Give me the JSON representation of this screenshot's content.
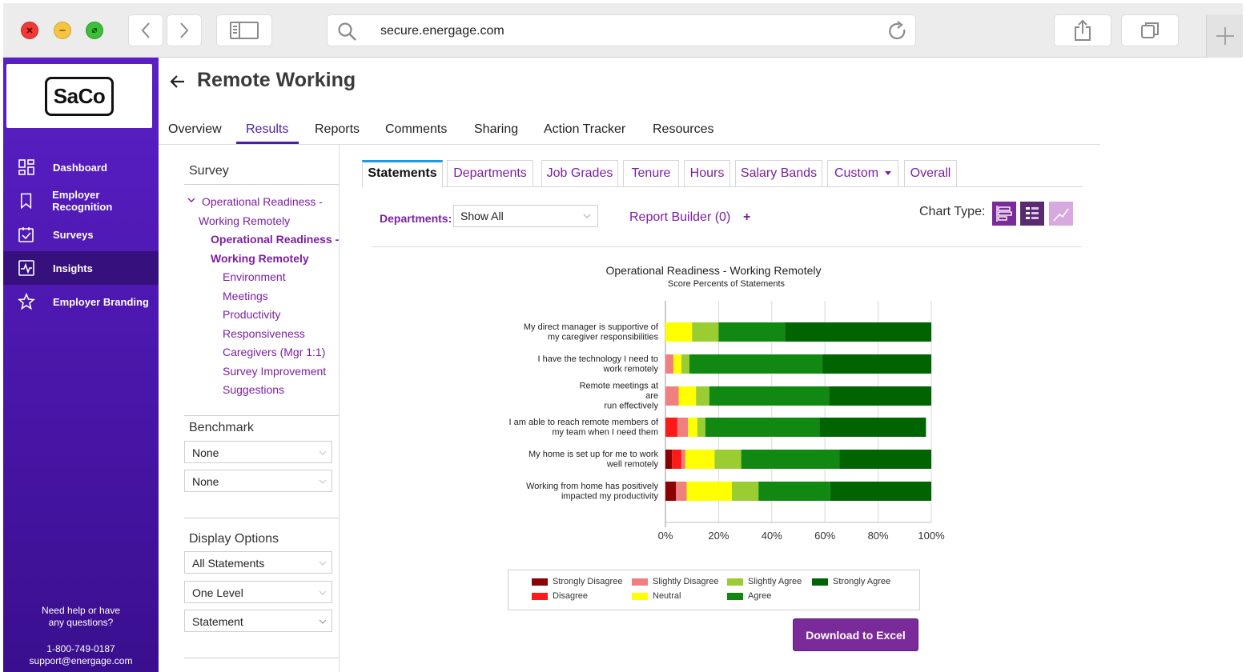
{
  "browser": {
    "url": "secure.energage.com"
  },
  "sidebar": {
    "logo_text": "SaCo",
    "items": [
      {
        "label": "Dashboard",
        "icon": "dashboard-icon"
      },
      {
        "label": "Employer Recognition",
        "icon": "bookmark-icon"
      },
      {
        "label": "Surveys",
        "icon": "checkbox-icon"
      },
      {
        "label": "Insights",
        "icon": "pulse-icon",
        "active": true
      },
      {
        "label": "Employer Branding",
        "icon": "star-icon"
      }
    ],
    "help_line1": "Need help or have",
    "help_line2": "any questions?",
    "phone": "1-800-749-0187",
    "email": "support@energage.com"
  },
  "header": {
    "title": "Remote Working",
    "tabs": [
      "Overview",
      "Results",
      "Reports",
      "Comments",
      "Sharing",
      "Action Tracker",
      "Resources"
    ],
    "active_tab": "Results"
  },
  "filters": {
    "survey_title": "Survey",
    "tree": {
      "root_line1": "Operational Readiness -",
      "root_line2": "Working Remotely",
      "selected_line1": "Operational Readiness -",
      "selected_line2": "Working Remotely",
      "children": [
        "Environment",
        "Meetings",
        "Productivity",
        "Responsiveness",
        "Caregivers (Mgr 1:1)",
        "Survey Improvement",
        "Suggestions"
      ]
    },
    "benchmark_title": "Benchmark",
    "benchmark_1": "None",
    "benchmark_2": "None",
    "display_title": "Display Options",
    "display_1": "All Statements",
    "display_2": "One Level",
    "display_3": "Statement"
  },
  "subtabs": [
    "Statements",
    "Departments",
    "Job Grades",
    "Tenure",
    "Hours",
    "Salary Bands",
    "Custom",
    "Overall"
  ],
  "controls": {
    "departments_label": "Departments:",
    "departments_value": "Show All",
    "report_builder": "Report Builder (0)",
    "report_plus": "+",
    "chart_type_label": "Chart Type:"
  },
  "chart_data": {
    "type": "bar",
    "orientation": "horizontal-stacked-percent",
    "title": "Operational Readiness - Working Remotely",
    "subtitle": "Score Percents of Statements",
    "x_ticks": [
      "0%",
      "20%",
      "40%",
      "60%",
      "80%",
      "100%"
    ],
    "xlim": [
      0,
      100
    ],
    "categories": [
      [
        "My direct manager is supportive of",
        "my caregiver responsibilities"
      ],
      [
        "I have the technology I need to",
        "work remotely"
      ],
      [
        "Remote meetings at",
        "are",
        "run effectively"
      ],
      [
        "I am able to reach remote members of",
        "my team when I need them"
      ],
      [
        "My home is set up for me to work",
        "well remotely"
      ],
      [
        "Working from home has positively",
        "impacted my productivity"
      ]
    ],
    "series": [
      {
        "name": "Strongly Disagree",
        "color": "#8b0000",
        "values": [
          0,
          0,
          0,
          0,
          2.5,
          4
        ]
      },
      {
        "name": "Disagree",
        "color": "#ff1a1a",
        "values": [
          0,
          0,
          0,
          4.5,
          3.5,
          0
        ]
      },
      {
        "name": "Slightly Disagree",
        "color": "#f08080",
        "values": [
          0,
          3,
          5,
          4,
          1.5,
          4
        ]
      },
      {
        "name": "Neutral",
        "color": "#ffff00",
        "values": [
          10,
          3,
          6.5,
          3.5,
          11,
          17
        ]
      },
      {
        "name": "Slightly Agree",
        "color": "#9acd32",
        "values": [
          10,
          3,
          5,
          3,
          10,
          10
        ]
      },
      {
        "name": "Agree",
        "color": "#118811",
        "values": [
          25,
          50,
          45,
          43,
          37,
          27
        ]
      },
      {
        "name": "Strongly Agree",
        "color": "#006400",
        "values": [
          55,
          41,
          38.5,
          40,
          34.5,
          38
        ]
      }
    ],
    "legend": [
      "Strongly Disagree",
      "Slightly Disagree",
      "Slightly Agree",
      "Strongly Agree",
      "Disagree",
      "Neutral",
      "Agree"
    ]
  },
  "download_button": "Download to Excel",
  "colors": {
    "brand_purple": "#7b1fa2",
    "sidebar_purple": "#4f19b5",
    "tab_accent": "#4a1fa8",
    "subtab_accent": "#1a9be0"
  }
}
